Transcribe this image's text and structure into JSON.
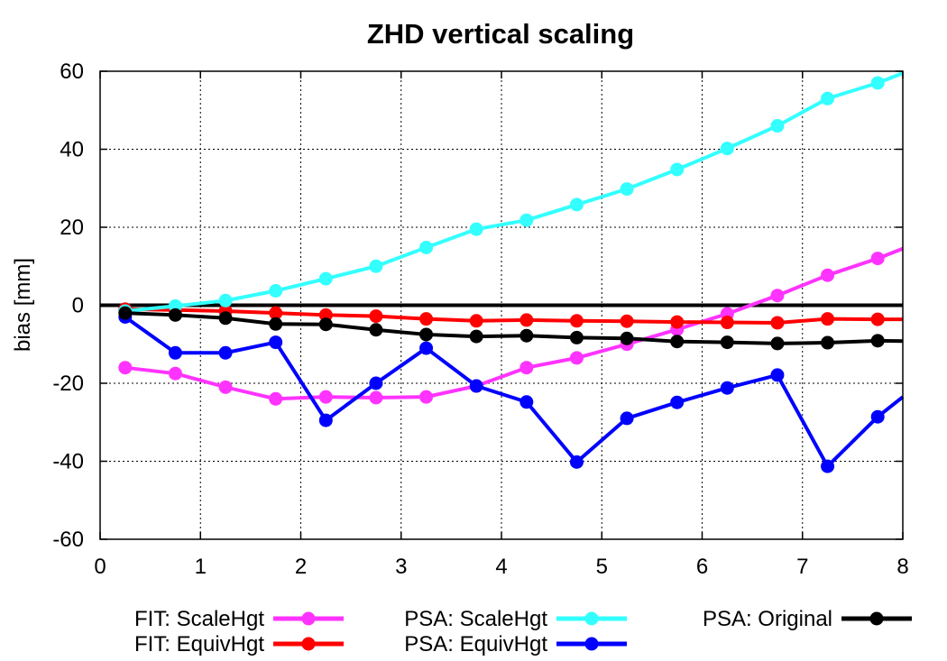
{
  "chart_data": {
    "type": "line",
    "title": "ZHD vertical scaling",
    "xlabel": "",
    "ylabel": "bias [mm]",
    "xlim": [
      0,
      8
    ],
    "ylim": [
      -60,
      60
    ],
    "xticks": [
      0,
      1,
      2,
      3,
      4,
      5,
      6,
      7,
      8
    ],
    "yticks": [
      -60,
      -40,
      -20,
      0,
      20,
      40,
      60
    ],
    "grid": true,
    "legend_position": "bottom",
    "zero_line": true,
    "series": [
      {
        "name": "FIT: ScaleHgt",
        "color": "#ff33ff",
        "x": [
          0.25,
          0.75,
          1.25,
          1.75,
          2.25,
          2.75,
          3.25,
          3.75,
          4.25,
          4.75,
          5.25,
          5.75,
          6.25,
          6.75,
          7.25,
          7.75,
          8.0
        ],
        "y": [
          -16,
          -17.5,
          -21,
          -24,
          -23.5,
          -23.7,
          -23.5,
          -20.7,
          -16,
          -13.5,
          -10,
          -6.2,
          -2.2,
          2.5,
          7.7,
          12,
          14.5
        ]
      },
      {
        "name": "FIT: EquivHgt",
        "color": "#ff0000",
        "x": [
          0.25,
          0.75,
          1.25,
          1.75,
          2.25,
          2.75,
          3.25,
          3.75,
          4.25,
          4.75,
          5.25,
          5.75,
          6.25,
          6.75,
          7.25,
          7.75,
          8.0
        ],
        "y": [
          -1,
          -1.2,
          -1.5,
          -2,
          -2.5,
          -2.8,
          -3.5,
          -4,
          -3.8,
          -4,
          -4.1,
          -4.3,
          -4.4,
          -4.5,
          -3.5,
          -3.6,
          -3.6
        ]
      },
      {
        "name": "PSA: ScaleHgt",
        "color": "#33ffff",
        "x": [
          0.25,
          0.75,
          1.25,
          1.75,
          2.25,
          2.75,
          3.25,
          3.75,
          4.25,
          4.75,
          5.25,
          5.75,
          6.25,
          6.75,
          7.25,
          7.75,
          8.0
        ],
        "y": [
          -1.5,
          -0.2,
          1.2,
          3.7,
          6.8,
          10,
          14.8,
          19.5,
          21.8,
          25.8,
          29.8,
          34.8,
          40.2,
          46,
          53,
          57,
          59.5
        ]
      },
      {
        "name": "PSA: EquivHgt",
        "color": "#0000ff",
        "x": [
          0.25,
          0.75,
          1.25,
          1.75,
          2.25,
          2.75,
          3.25,
          3.75,
          4.25,
          4.75,
          5.25,
          5.75,
          6.25,
          6.75,
          7.25,
          7.75,
          8.0
        ],
        "y": [
          -3,
          -12.2,
          -12.2,
          -9.5,
          -29.5,
          -20,
          -11,
          -20.7,
          -24.8,
          -40.2,
          -29,
          -24.9,
          -21.2,
          -17.9,
          -41.3,
          -28.6,
          -23.5
        ]
      },
      {
        "name": "PSA: Original",
        "color": "#000000",
        "x": [
          0.25,
          0.75,
          1.25,
          1.75,
          2.25,
          2.75,
          3.25,
          3.75,
          4.25,
          4.75,
          5.25,
          5.75,
          6.25,
          6.75,
          7.25,
          7.75,
          8.0
        ],
        "y": [
          -2,
          -2.5,
          -3.3,
          -4.8,
          -4.9,
          -6.3,
          -7.5,
          -8,
          -7.8,
          -8.3,
          -8.5,
          -9.3,
          -9.5,
          -9.8,
          -9.6,
          -9.1,
          -9.2
        ]
      }
    ]
  }
}
